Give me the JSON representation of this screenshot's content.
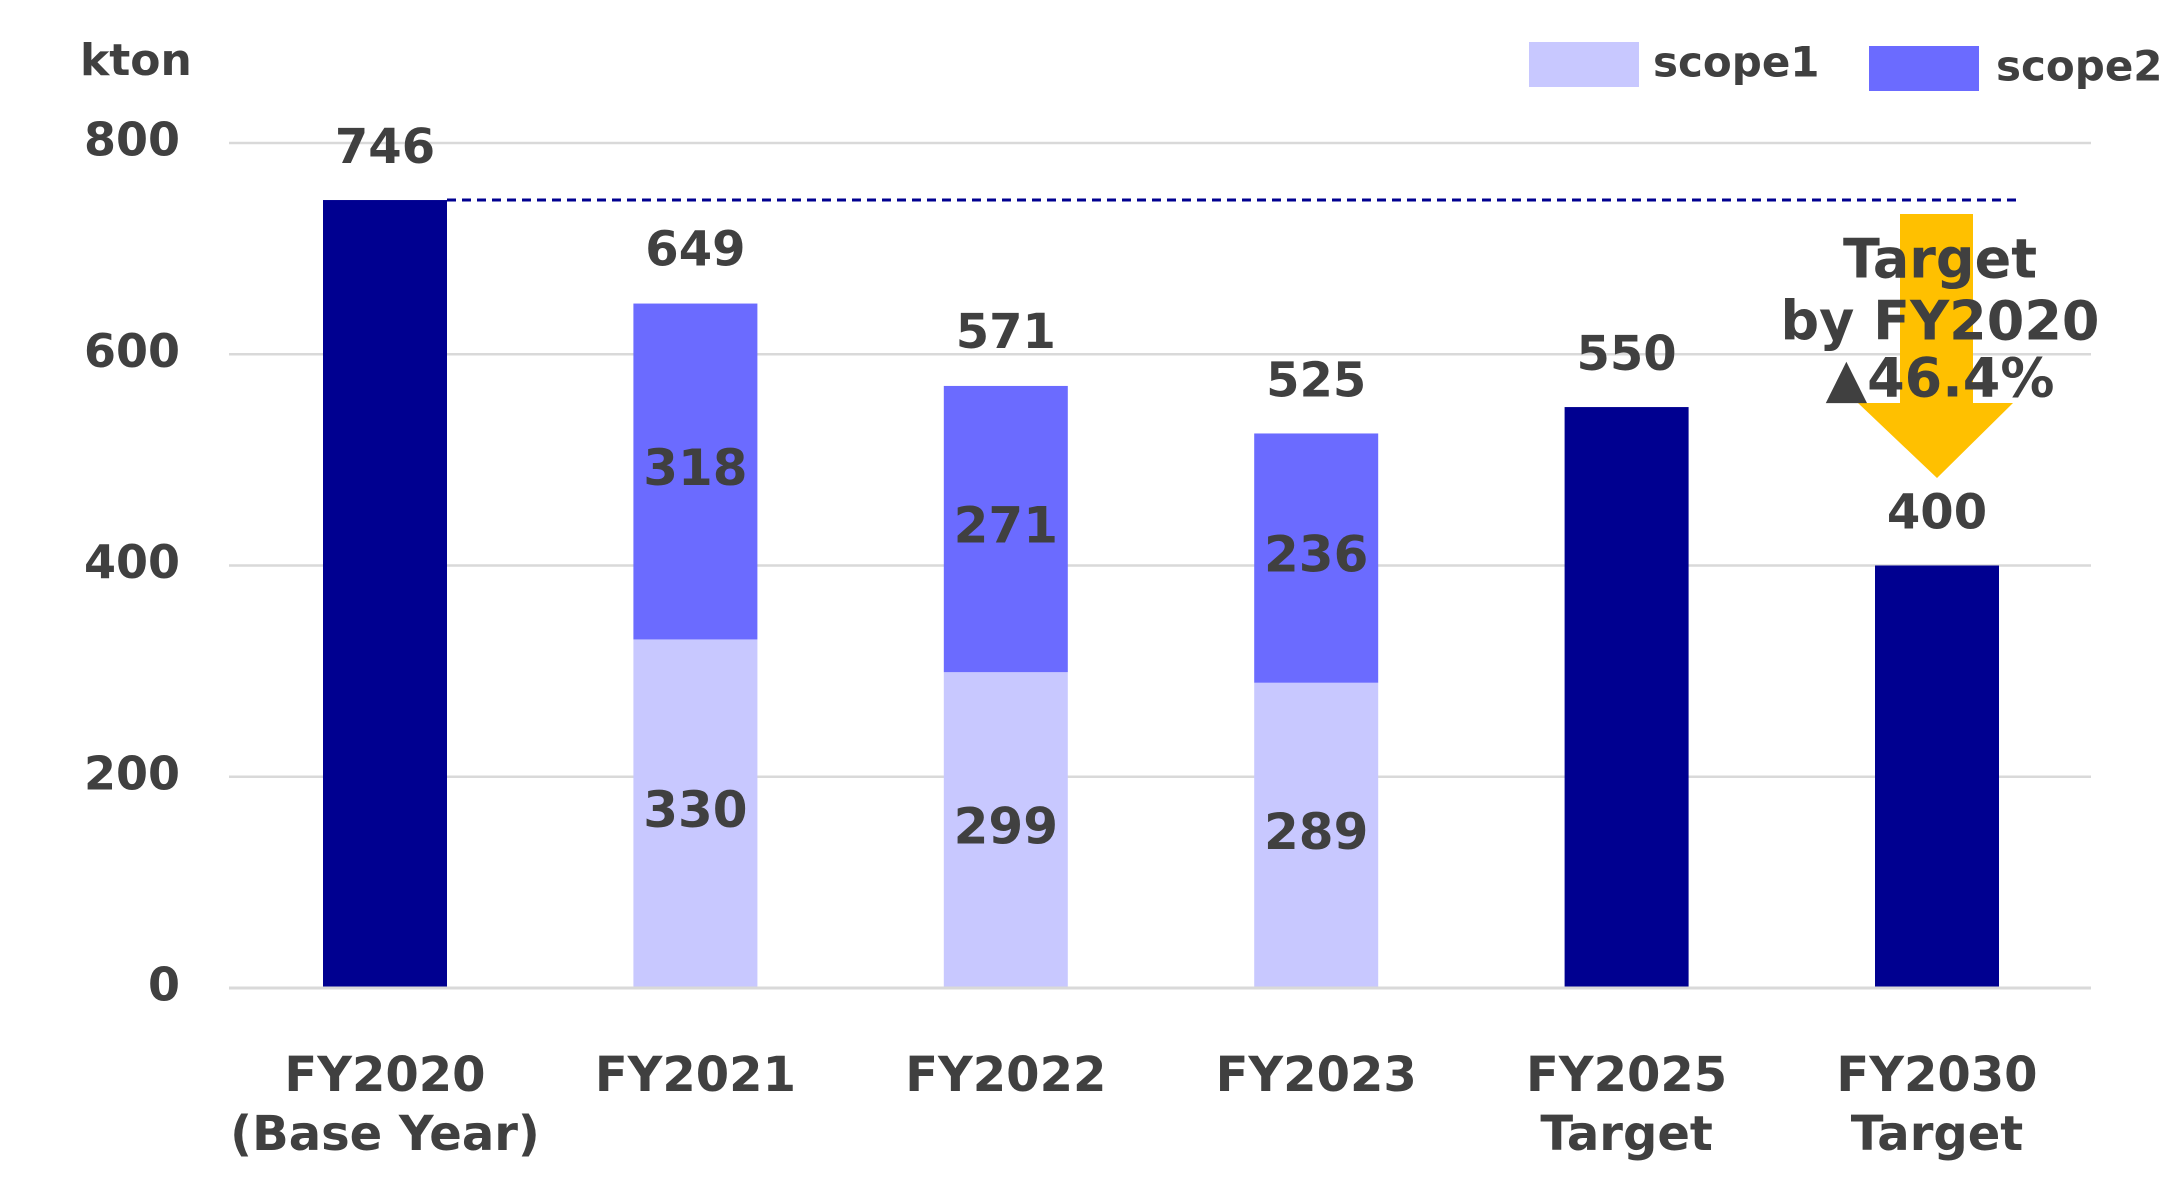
{
  "chart_data": {
    "type": "stacked_bar",
    "y_label": "kton",
    "categories": [
      [
        "FY2020",
        "(Base Year)"
      ],
      [
        "FY2021"
      ],
      [
        "FY2022"
      ],
      [
        "FY2023"
      ],
      [
        "FY2025",
        "Target"
      ],
      [
        "FY2030",
        "Target"
      ]
    ],
    "series": [
      {
        "name": "scope1",
        "color": "#c8c8ff",
        "values": [
          null,
          330,
          299,
          289,
          null,
          null
        ]
      },
      {
        "name": "scope2",
        "color": "#6b6bff",
        "values": [
          null,
          318,
          271,
          236,
          null,
          null
        ]
      }
    ],
    "totals": {
      "color": "#000090",
      "values": [
        746,
        649,
        571,
        525,
        550,
        400
      ]
    },
    "annotation": {
      "lines": [
        "Target",
        "by FY2020",
        "▲46.4%"
      ],
      "arrow_color": "#ffc000"
    },
    "ylim": [
      0,
      800
    ],
    "yticks": [
      0,
      200,
      400,
      600,
      800
    ],
    "grid": true,
    "legend": "top-right"
  }
}
